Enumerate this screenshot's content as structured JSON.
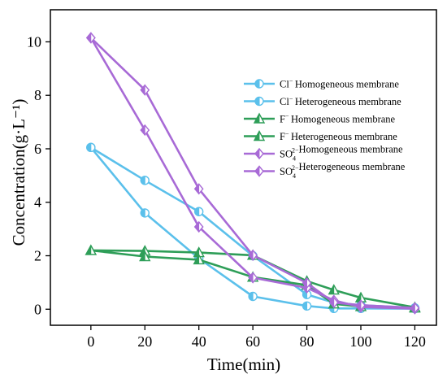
{
  "chart_data": {
    "type": "line",
    "xlabel": "Time(min)",
    "ylabel": "Concentration(g·L⁻¹)",
    "xlim": [
      -15,
      128
    ],
    "ylim": [
      -0.6,
      11.2
    ],
    "xticks": [
      0,
      20,
      40,
      60,
      80,
      100,
      120
    ],
    "yticks": [
      0,
      2,
      4,
      6,
      8,
      10
    ],
    "grid": false,
    "legend_position": "right",
    "series": [
      {
        "ion": "Cl",
        "ion_sup": "−",
        "ion_sub": "",
        "ion_sup_stack": "",
        "name": "Homogeneous membrane",
        "color": "#5bc0eb",
        "marker": "circle-half",
        "x": [
          0,
          20,
          40,
          60,
          80,
          90,
          100,
          120
        ],
        "y": [
          6.05,
          3.6,
          1.9,
          0.48,
          0.12,
          0.03,
          0.03,
          0.02
        ]
      },
      {
        "ion": "Cl",
        "ion_sup": "−",
        "ion_sub": "",
        "ion_sup_stack": "",
        "name": "Heterogeneous membrane",
        "color": "#5bc0eb",
        "marker": "circle-half",
        "x": [
          0,
          20,
          40,
          60,
          80,
          90,
          100,
          120
        ],
        "y": [
          6.05,
          4.82,
          3.65,
          2.0,
          0.55,
          0.25,
          0.15,
          0.05
        ]
      },
      {
        "ion": "F",
        "ion_sup": "−",
        "ion_sub": "",
        "ion_sup_stack": "",
        "name": "Homogeneous membrane",
        "color": "#2e9e58",
        "marker": "triangle-half",
        "x": [
          0,
          20,
          40,
          60,
          80,
          90,
          100,
          120
        ],
        "y": [
          2.2,
          2.18,
          2.12,
          2.02,
          1.05,
          0.72,
          0.43,
          0.07
        ]
      },
      {
        "ion": "F",
        "ion_sup": "−",
        "ion_sub": "",
        "ion_sup_stack": "",
        "name": "Heterogeneous membrane",
        "color": "#2e9e58",
        "marker": "triangle-half",
        "x": [
          0,
          20,
          40,
          60,
          80,
          90,
          100,
          120
        ],
        "y": [
          2.2,
          1.97,
          1.85,
          1.2,
          0.9,
          0.2,
          0.1,
          0.05
        ]
      },
      {
        "ion": "SO",
        "ion_sup": "",
        "ion_sub": "4",
        "ion_sup_stack": "2−",
        "name": "Homogeneous membrane",
        "color": "#a86ad6",
        "marker": "diamond-half",
        "x": [
          0,
          20,
          40,
          60,
          80,
          90,
          100,
          120
        ],
        "y": [
          10.15,
          6.7,
          3.08,
          1.18,
          0.8,
          0.33,
          0.08,
          0.02
        ]
      },
      {
        "ion": "SO",
        "ion_sup": "",
        "ion_sub": "4",
        "ion_sup_stack": "2−",
        "name": "Heterogeneous membrane",
        "color": "#a86ad6",
        "marker": "diamond-half",
        "x": [
          0,
          20,
          40,
          60,
          80,
          90,
          100,
          120
        ],
        "y": [
          10.15,
          8.2,
          4.5,
          2.02,
          0.98,
          0.25,
          0.15,
          0.05
        ]
      }
    ]
  }
}
